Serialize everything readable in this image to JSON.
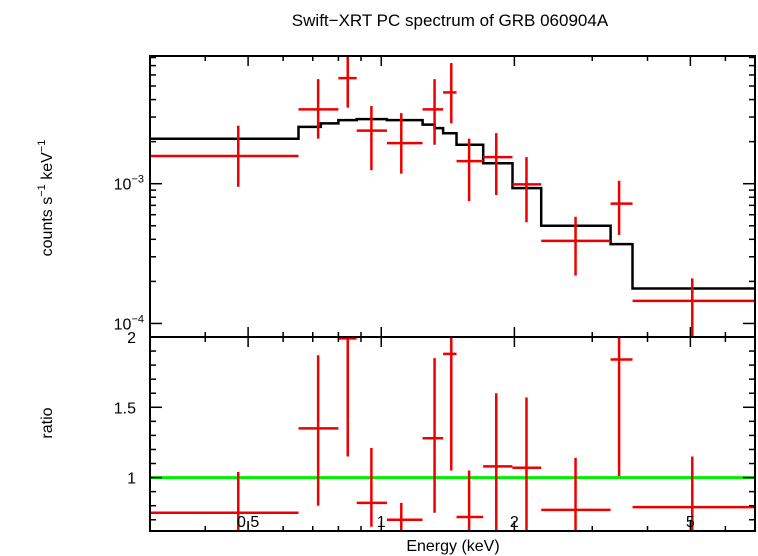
{
  "chart_data": [
    {
      "type": "scatter",
      "panel": "spectrum",
      "title": "Swift−XRT PC spectrum of GRB 060904A",
      "xlabel": "Energy (keV)",
      "ylabel_parts": [
        "counts s",
        "−1",
        " keV",
        "−1"
      ],
      "xscale": "log",
      "yscale": "log",
      "xlim": [
        0.3,
        7.0
      ],
      "ylim": [
        8e-05,
        0.0082
      ],
      "yticks": [
        {
          "value": 0.001,
          "base": "10",
          "exp": "−3"
        },
        {
          "value": 0.0001,
          "base": "10",
          "exp": "−4"
        }
      ],
      "data_series": {
        "name": "data",
        "color": "#ee0000",
        "points": [
          {
            "x": 0.475,
            "xlo": 0.3,
            "xhi": 0.65,
            "y": 0.00158,
            "ylo": 0.00095,
            "yhi": 0.0026
          },
          {
            "x": 0.72,
            "xlo": 0.65,
            "xhi": 0.8,
            "y": 0.0034,
            "ylo": 0.0021,
            "yhi": 0.0056
          },
          {
            "x": 0.84,
            "xlo": 0.8,
            "xhi": 0.88,
            "y": 0.0057,
            "ylo": 0.0035,
            "yhi": 0.0082
          },
          {
            "x": 0.95,
            "xlo": 0.88,
            "xhi": 1.03,
            "y": 0.0024,
            "ylo": 0.00125,
            "yhi": 0.0036
          },
          {
            "x": 1.11,
            "xlo": 1.03,
            "xhi": 1.24,
            "y": 0.00195,
            "ylo": 0.00118,
            "yhi": 0.0032
          },
          {
            "x": 1.32,
            "xlo": 1.24,
            "xhi": 1.38,
            "y": 0.0034,
            "ylo": 0.0019,
            "yhi": 0.0056
          },
          {
            "x": 1.44,
            "xlo": 1.38,
            "xhi": 1.48,
            "y": 0.0045,
            "ylo": 0.0027,
            "yhi": 0.0073
          },
          {
            "x": 1.58,
            "xlo": 1.48,
            "xhi": 1.7,
            "y": 0.00145,
            "ylo": 0.00075,
            "yhi": 0.0021
          },
          {
            "x": 1.82,
            "xlo": 1.7,
            "xhi": 1.98,
            "y": 0.00155,
            "ylo": 0.00083,
            "yhi": 0.0023
          },
          {
            "x": 2.13,
            "xlo": 1.98,
            "xhi": 2.3,
            "y": 0.00099,
            "ylo": 0.00053,
            "yhi": 0.00155
          },
          {
            "x": 2.75,
            "xlo": 2.3,
            "xhi": 3.3,
            "y": 0.00039,
            "ylo": 0.00022,
            "yhi": 0.00058
          },
          {
            "x": 3.45,
            "xlo": 3.3,
            "xhi": 3.7,
            "y": 0.00072,
            "ylo": 0.00043,
            "yhi": 0.00105
          },
          {
            "x": 5.05,
            "xlo": 3.7,
            "xhi": 7.0,
            "y": 0.000145,
            "ylo": 8e-05,
            "yhi": 0.00021
          }
        ]
      },
      "model_series": {
        "name": "model",
        "color": "#000000",
        "steps": [
          {
            "xlo": 0.3,
            "xhi": 0.65,
            "y": 0.0021
          },
          {
            "xlo": 0.65,
            "xhi": 0.73,
            "y": 0.00255
          },
          {
            "xlo": 0.73,
            "xhi": 0.8,
            "y": 0.0027
          },
          {
            "xlo": 0.8,
            "xhi": 0.88,
            "y": 0.00285
          },
          {
            "xlo": 0.88,
            "xhi": 1.03,
            "y": 0.0029
          },
          {
            "xlo": 1.03,
            "xhi": 1.24,
            "y": 0.00285
          },
          {
            "xlo": 1.24,
            "xhi": 1.32,
            "y": 0.00265
          },
          {
            "xlo": 1.32,
            "xhi": 1.38,
            "y": 0.0025
          },
          {
            "xlo": 1.38,
            "xhi": 1.48,
            "y": 0.0023
          },
          {
            "xlo": 1.48,
            "xhi": 1.7,
            "y": 0.0019
          },
          {
            "xlo": 1.7,
            "xhi": 1.98,
            "y": 0.0014
          },
          {
            "xlo": 1.98,
            "xhi": 2.3,
            "y": 0.00093
          },
          {
            "xlo": 2.3,
            "xhi": 3.3,
            "y": 0.0005
          },
          {
            "xlo": 3.3,
            "xhi": 3.7,
            "y": 0.00037
          },
          {
            "xlo": 3.7,
            "xhi": 7.0,
            "y": 0.000178
          }
        ]
      }
    },
    {
      "type": "scatter",
      "panel": "ratio",
      "xlabel": "Energy (keV)",
      "ylabel": "ratio",
      "xscale": "log",
      "xlim": [
        0.3,
        7.0
      ],
      "ylim": [
        0.62,
        2.0
      ],
      "yticks": [
        {
          "value": 1,
          "label": "1"
        },
        {
          "value": 1.5,
          "label": "1.5"
        },
        {
          "value": 2,
          "label": "2"
        }
      ],
      "xticks": [
        {
          "value": 0.5,
          "label": "0.5"
        },
        {
          "value": 1,
          "label": "1"
        },
        {
          "value": 2,
          "label": "2"
        },
        {
          "value": 5,
          "label": "5"
        }
      ],
      "reference_line": {
        "y": 1,
        "color": "#00ee00"
      },
      "data_series": {
        "name": "ratio",
        "color": "#ee0000",
        "points": [
          {
            "x": 0.475,
            "xlo": 0.3,
            "xhi": 0.65,
            "y": 0.75,
            "ylo": 0.62,
            "yhi": 1.04
          },
          {
            "x": 0.72,
            "xlo": 0.65,
            "xhi": 0.8,
            "y": 1.35,
            "ylo": 0.8,
            "yhi": 1.87
          },
          {
            "x": 0.84,
            "xlo": 0.8,
            "xhi": 0.88,
            "y": 1.99,
            "ylo": 1.15,
            "yhi": 2.0
          },
          {
            "x": 0.95,
            "xlo": 0.88,
            "xhi": 1.03,
            "y": 0.82,
            "ylo": 0.65,
            "yhi": 1.21
          },
          {
            "x": 1.11,
            "xlo": 1.03,
            "xhi": 1.24,
            "y": 0.7,
            "ylo": 0.62,
            "yhi": 0.82
          },
          {
            "x": 1.32,
            "xlo": 1.24,
            "xhi": 1.38,
            "y": 1.28,
            "ylo": 0.75,
            "yhi": 1.85
          },
          {
            "x": 1.44,
            "xlo": 1.38,
            "xhi": 1.48,
            "y": 1.88,
            "ylo": 1.05,
            "yhi": 2.0
          },
          {
            "x": 1.58,
            "xlo": 1.48,
            "xhi": 1.7,
            "y": 0.72,
            "ylo": 0.62,
            "yhi": 1.05
          },
          {
            "x": 1.82,
            "xlo": 1.7,
            "xhi": 1.98,
            "y": 1.08,
            "ylo": 0.62,
            "yhi": 1.6
          },
          {
            "x": 2.13,
            "xlo": 1.98,
            "xhi": 2.3,
            "y": 1.07,
            "ylo": 0.62,
            "yhi": 1.57
          },
          {
            "x": 2.75,
            "xlo": 2.3,
            "xhi": 3.3,
            "y": 0.77,
            "ylo": 0.62,
            "yhi": 1.14
          },
          {
            "x": 3.45,
            "xlo": 3.3,
            "xhi": 3.7,
            "y": 1.84,
            "ylo": 1.01,
            "yhi": 2.0
          },
          {
            "x": 5.05,
            "xlo": 3.7,
            "xhi": 7.0,
            "y": 0.79,
            "ylo": 0.62,
            "yhi": 1.15
          }
        ]
      }
    }
  ]
}
